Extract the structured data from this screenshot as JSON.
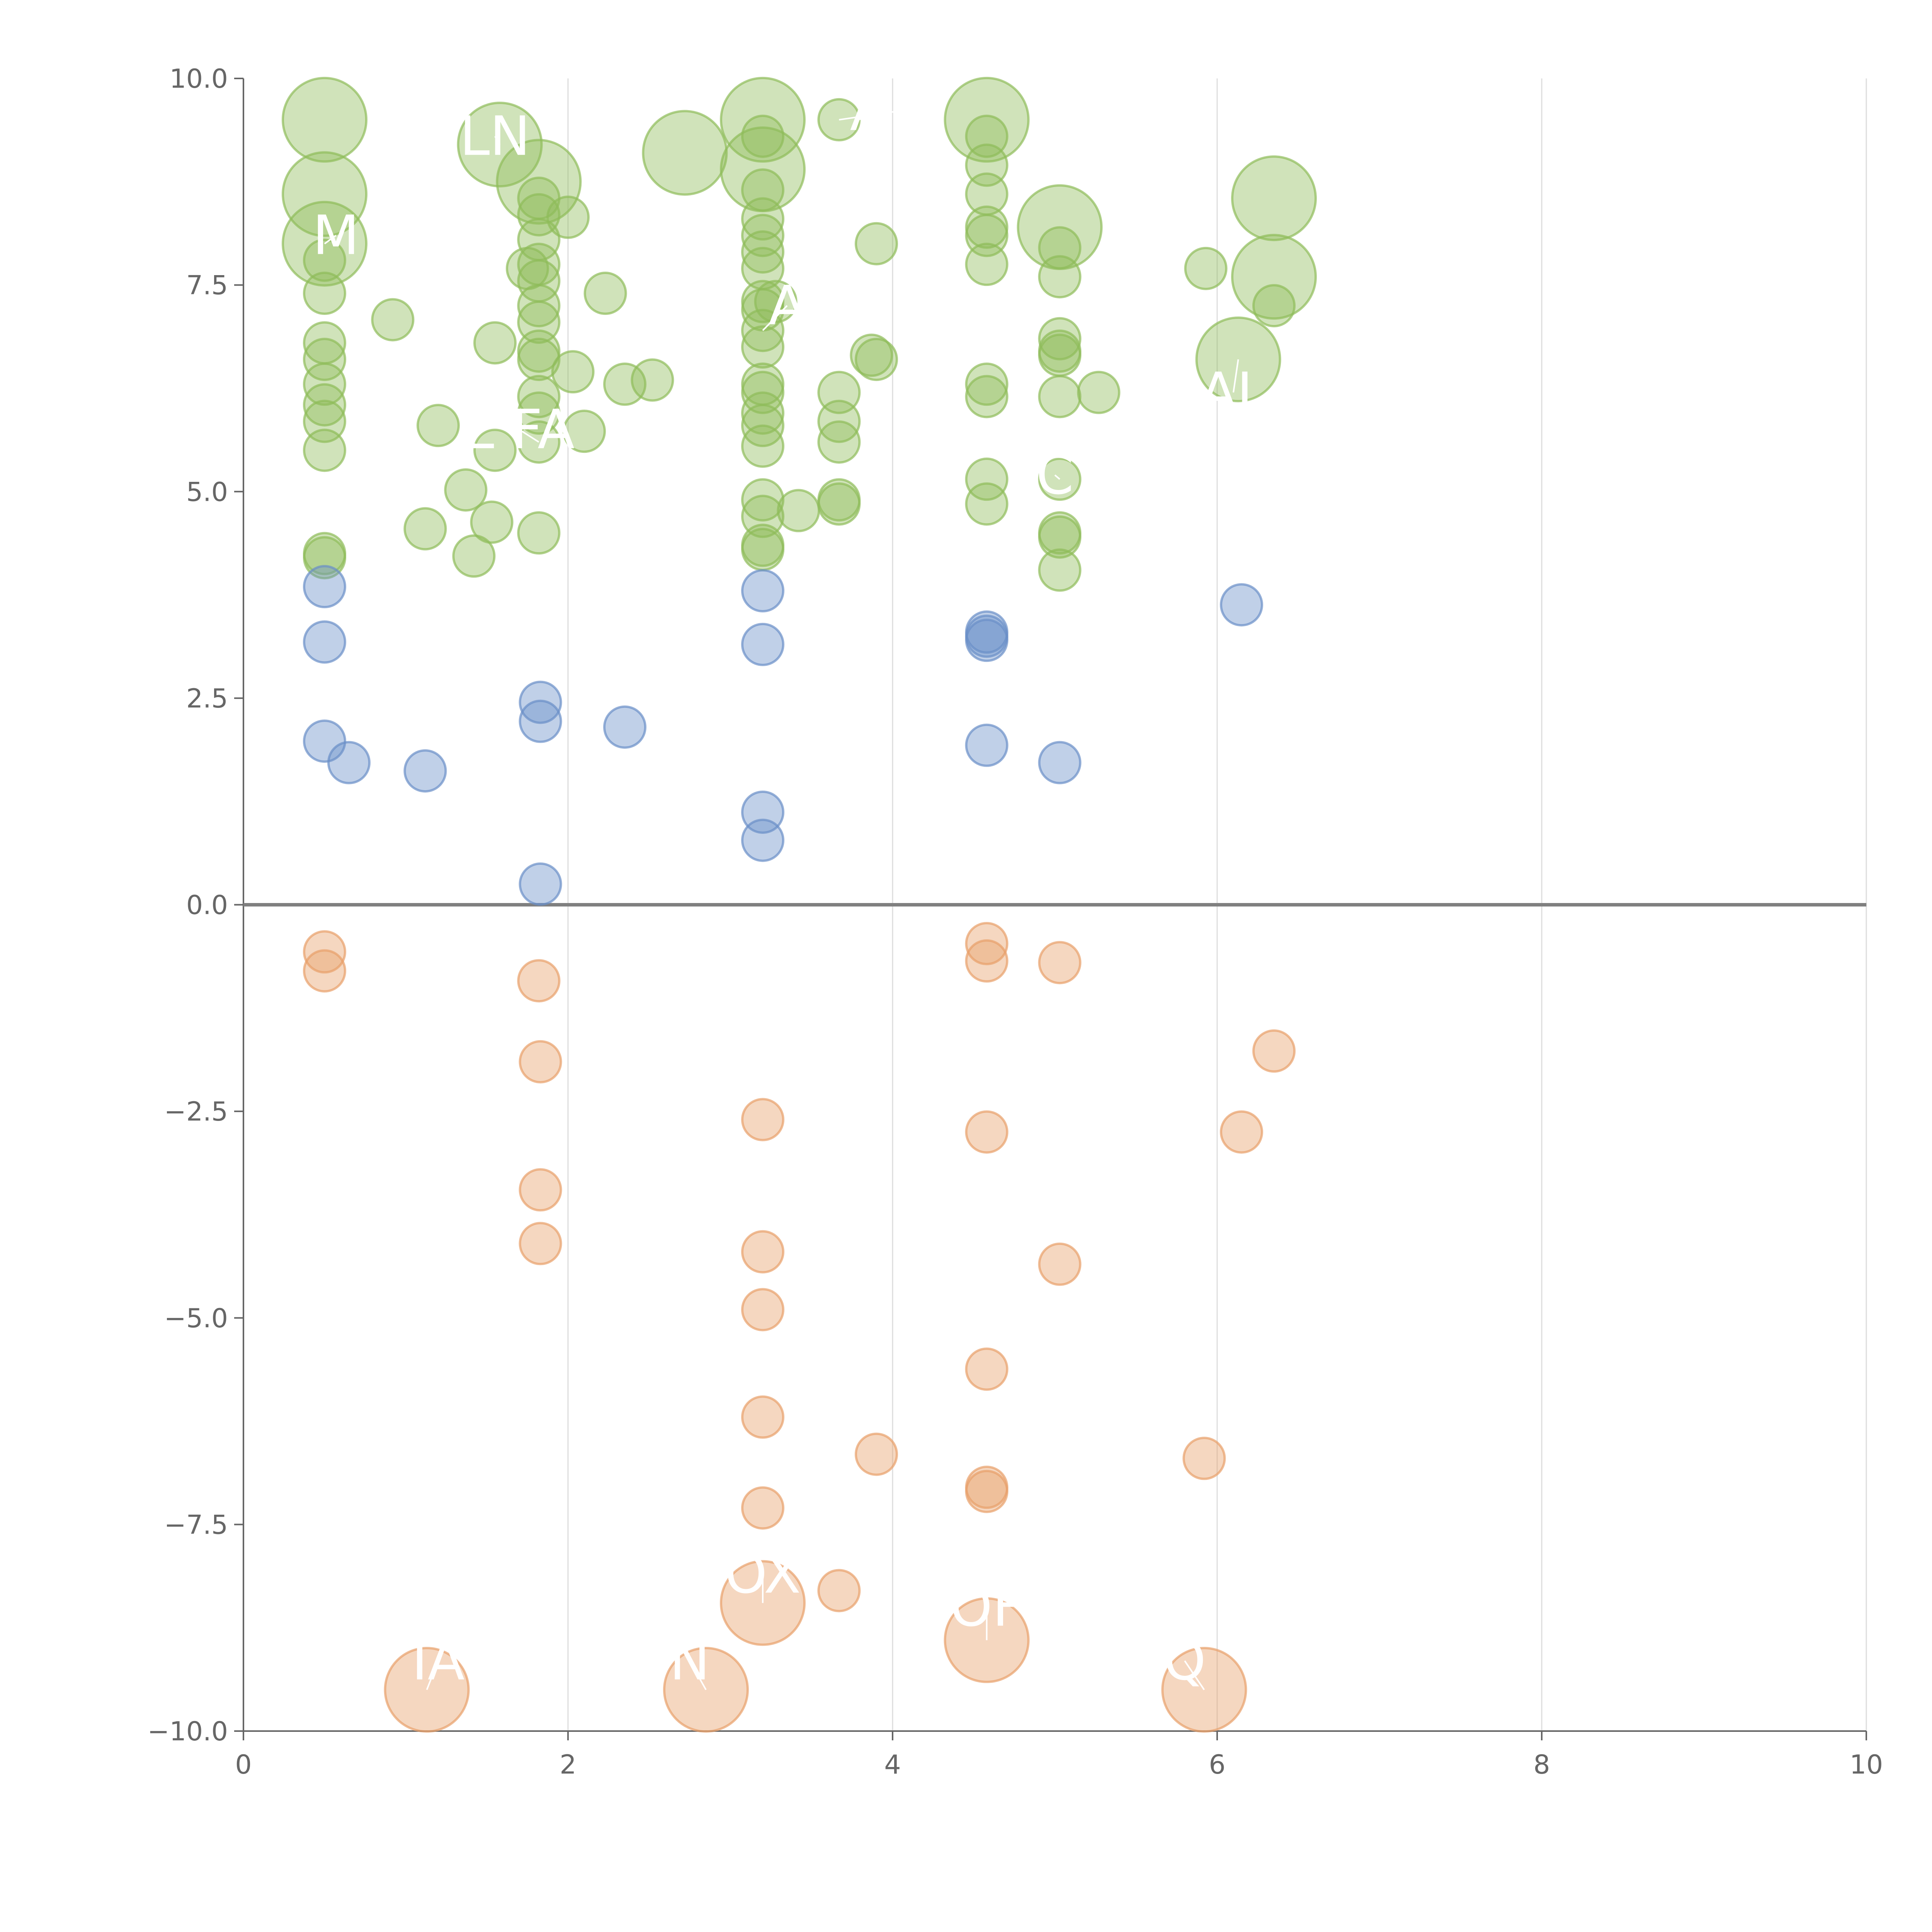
{
  "chart_data": {
    "type": "scatter",
    "title": "",
    "xlabel": "",
    "ylabel": "",
    "xlim": [
      0,
      10
    ],
    "ylim": [
      -10,
      10
    ],
    "xticks": [
      0,
      2,
      4,
      6,
      8,
      10
    ],
    "xtick_labels": [
      "0",
      "2",
      "4",
      "6",
      "8",
      "10"
    ],
    "yticks": [
      10,
      7.5,
      5,
      2.5,
      0,
      -2.5,
      -5,
      -7.5,
      -10
    ],
    "ytick_labels": [
      "10.0",
      "7.5",
      "5.0",
      "2.5",
      "0.0",
      "−2.5",
      "−5.0",
      "−7.5",
      "−10.0"
    ],
    "grid": "vertical",
    "zero_line": true,
    "colors": {
      "green": "#8fbc5a",
      "blue": "#6a8fc8",
      "orange": "#e8a06a",
      "axis": "#666666",
      "grid": "#dddddd",
      "zero": "#808080"
    },
    "series": [
      {
        "color": "green",
        "points": [
          {
            "x": 0.5,
            "y": 9.5,
            "s": 3
          },
          {
            "x": 0.5,
            "y": 8.6,
            "s": 3
          },
          {
            "x": 0.5,
            "y": 8.0,
            "s": 3
          },
          {
            "x": 0.5,
            "y": 7.8
          },
          {
            "x": 0.5,
            "y": 7.4
          },
          {
            "x": 0.5,
            "y": 6.8
          },
          {
            "x": 0.5,
            "y": 6.6
          },
          {
            "x": 0.5,
            "y": 6.3
          },
          {
            "x": 0.5,
            "y": 6.05
          },
          {
            "x": 0.5,
            "y": 5.85
          },
          {
            "x": 0.5,
            "y": 5.5
          },
          {
            "x": 0.5,
            "y": 4.25
          },
          {
            "x": 0.5,
            "y": 4.2
          },
          {
            "x": 0.92,
            "y": 7.08
          },
          {
            "x": 1.12,
            "y": 4.55
          },
          {
            "x": 1.2,
            "y": 5.8
          },
          {
            "x": 1.37,
            "y": 5.02
          },
          {
            "x": 1.42,
            "y": 4.22
          },
          {
            "x": 1.55,
            "y": 5.5
          },
          {
            "x": 1.55,
            "y": 6.8
          },
          {
            "x": 1.53,
            "y": 4.63
          },
          {
            "x": 1.58,
            "y": 9.2,
            "s": 3
          },
          {
            "x": 1.82,
            "y": 8.75,
            "s": 3
          },
          {
            "x": 1.82,
            "y": 8.55
          },
          {
            "x": 1.82,
            "y": 8.35
          },
          {
            "x": 1.82,
            "y": 8.05
          },
          {
            "x": 1.82,
            "y": 7.75
          },
          {
            "x": 1.82,
            "y": 7.55
          },
          {
            "x": 1.82,
            "y": 7.25
          },
          {
            "x": 1.82,
            "y": 7.05
          },
          {
            "x": 1.82,
            "y": 6.7
          },
          {
            "x": 1.82,
            "y": 6.6
          },
          {
            "x": 1.82,
            "y": 6.15
          },
          {
            "x": 1.82,
            "y": 5.95
          },
          {
            "x": 1.82,
            "y": 5.6
          },
          {
            "x": 1.82,
            "y": 4.5
          },
          {
            "x": 1.75,
            "y": 7.7
          },
          {
            "x": 2.0,
            "y": 8.32
          },
          {
            "x": 2.03,
            "y": 6.45
          },
          {
            "x": 2.1,
            "y": 5.73
          },
          {
            "x": 2.35,
            "y": 6.3
          },
          {
            "x": 2.23,
            "y": 7.4
          },
          {
            "x": 2.52,
            "y": 6.35
          },
          {
            "x": 2.72,
            "y": 9.1,
            "s": 3
          },
          {
            "x": 3.2,
            "y": 9.5,
            "s": 3
          },
          {
            "x": 3.2,
            "y": 9.3
          },
          {
            "x": 3.2,
            "y": 8.9,
            "s": 3
          },
          {
            "x": 3.2,
            "y": 8.65
          },
          {
            "x": 3.2,
            "y": 8.3
          },
          {
            "x": 3.2,
            "y": 8.1
          },
          {
            "x": 3.2,
            "y": 7.9
          },
          {
            "x": 3.2,
            "y": 7.7
          },
          {
            "x": 3.2,
            "y": 7.3
          },
          {
            "x": 3.2,
            "y": 7.2
          },
          {
            "x": 3.2,
            "y": 6.95
          },
          {
            "x": 3.2,
            "y": 6.75
          },
          {
            "x": 3.2,
            "y": 6.3
          },
          {
            "x": 3.2,
            "y": 6.2
          },
          {
            "x": 3.2,
            "y": 5.95
          },
          {
            "x": 3.2,
            "y": 5.8
          },
          {
            "x": 3.2,
            "y": 5.55
          },
          {
            "x": 3.2,
            "y": 4.9
          },
          {
            "x": 3.2,
            "y": 4.7
          },
          {
            "x": 3.2,
            "y": 4.35
          },
          {
            "x": 3.2,
            "y": 4.3
          },
          {
            "x": 3.28,
            "y": 7.3
          },
          {
            "x": 3.42,
            "y": 4.77
          },
          {
            "x": 3.67,
            "y": 9.5
          },
          {
            "x": 3.67,
            "y": 6.2
          },
          {
            "x": 3.67,
            "y": 5.85
          },
          {
            "x": 3.67,
            "y": 5.6
          },
          {
            "x": 3.67,
            "y": 4.9
          },
          {
            "x": 3.67,
            "y": 4.85
          },
          {
            "x": 3.87,
            "y": 6.65
          },
          {
            "x": 3.9,
            "y": 6.6
          },
          {
            "x": 3.9,
            "y": 8.0
          },
          {
            "x": 4.58,
            "y": 9.5,
            "s": 3
          },
          {
            "x": 4.58,
            "y": 9.3
          },
          {
            "x": 4.58,
            "y": 8.95
          },
          {
            "x": 4.58,
            "y": 8.6
          },
          {
            "x": 4.58,
            "y": 8.2
          },
          {
            "x": 4.58,
            "y": 8.1
          },
          {
            "x": 4.58,
            "y": 7.75
          },
          {
            "x": 4.58,
            "y": 6.3
          },
          {
            "x": 4.58,
            "y": 6.15
          },
          {
            "x": 4.58,
            "y": 5.15
          },
          {
            "x": 4.58,
            "y": 4.85
          },
          {
            "x": 5.03,
            "y": 8.2,
            "s": 3
          },
          {
            "x": 5.03,
            "y": 7.95
          },
          {
            "x": 5.03,
            "y": 7.6
          },
          {
            "x": 5.03,
            "y": 6.85
          },
          {
            "x": 5.03,
            "y": 6.7
          },
          {
            "x": 5.03,
            "y": 6.65
          },
          {
            "x": 5.03,
            "y": 6.15
          },
          {
            "x": 5.03,
            "y": 5.15
          },
          {
            "x": 5.03,
            "y": 4.5
          },
          {
            "x": 5.03,
            "y": 4.45
          },
          {
            "x": 5.03,
            "y": 4.05
          },
          {
            "x": 5.27,
            "y": 6.2
          },
          {
            "x": 5.93,
            "y": 7.7
          },
          {
            "x": 6.13,
            "y": 6.6,
            "s": 3
          },
          {
            "x": 6.35,
            "y": 8.55,
            "s": 3
          },
          {
            "x": 6.35,
            "y": 7.6,
            "s": 3
          },
          {
            "x": 6.35,
            "y": 7.25
          }
        ]
      },
      {
        "color": "blue",
        "points": [
          {
            "x": 0.5,
            "y": 3.85
          },
          {
            "x": 0.5,
            "y": 3.18
          },
          {
            "x": 0.5,
            "y": 1.98
          },
          {
            "x": 0.65,
            "y": 1.72
          },
          {
            "x": 1.12,
            "y": 1.62
          },
          {
            "x": 1.83,
            "y": 2.45
          },
          {
            "x": 1.83,
            "y": 2.22
          },
          {
            "x": 1.83,
            "y": 0.25
          },
          {
            "x": 2.35,
            "y": 2.15
          },
          {
            "x": 3.2,
            "y": 3.8
          },
          {
            "x": 3.2,
            "y": 3.15
          },
          {
            "x": 3.2,
            "y": 1.12
          },
          {
            "x": 3.2,
            "y": 0.78
          },
          {
            "x": 4.58,
            "y": 3.3
          },
          {
            "x": 4.58,
            "y": 3.25
          },
          {
            "x": 4.58,
            "y": 3.2
          },
          {
            "x": 4.58,
            "y": 1.93
          },
          {
            "x": 5.03,
            "y": 1.72
          },
          {
            "x": 6.15,
            "y": 3.63
          }
        ]
      },
      {
        "color": "orange",
        "points": [
          {
            "x": 0.5,
            "y": -0.57
          },
          {
            "x": 0.5,
            "y": -0.8
          },
          {
            "x": 1.82,
            "y": -0.92
          },
          {
            "x": 1.83,
            "y": -1.9
          },
          {
            "x": 1.83,
            "y": -3.45
          },
          {
            "x": 1.83,
            "y": -4.1
          },
          {
            "x": 3.2,
            "y": -2.6
          },
          {
            "x": 3.2,
            "y": -4.2
          },
          {
            "x": 3.2,
            "y": -4.9
          },
          {
            "x": 3.2,
            "y": -6.2
          },
          {
            "x": 3.2,
            "y": -7.3
          },
          {
            "x": 3.2,
            "y": -8.45,
            "s": 3
          },
          {
            "x": 3.67,
            "y": -8.3
          },
          {
            "x": 3.9,
            "y": -6.65
          },
          {
            "x": 4.58,
            "y": -0.47
          },
          {
            "x": 4.58,
            "y": -0.68
          },
          {
            "x": 4.58,
            "y": -2.75
          },
          {
            "x": 4.58,
            "y": -5.62
          },
          {
            "x": 4.58,
            "y": -7.05
          },
          {
            "x": 4.58,
            "y": -7.1
          },
          {
            "x": 4.58,
            "y": -8.9,
            "s": 3
          },
          {
            "x": 5.03,
            "y": -0.7
          },
          {
            "x": 5.03,
            "y": -4.35
          },
          {
            "x": 5.92,
            "y": -6.7
          },
          {
            "x": 6.15,
            "y": -2.75
          },
          {
            "x": 6.35,
            "y": -1.77
          },
          {
            "x": 1.13,
            "y": -9.5,
            "s": 3
          },
          {
            "x": 2.85,
            "y": -9.5,
            "s": 3
          },
          {
            "x": 5.92,
            "y": -9.5,
            "s": 3
          }
        ]
      }
    ],
    "labels": [
      {
        "text": "LN",
        "x": 1.55,
        "y": 9.3,
        "px": 1.58,
        "py": 9.2
      },
      {
        "text": "M",
        "x": 0.57,
        "y": 8.1,
        "px": 0.5,
        "py": 8.0
      },
      {
        "text": "L FA",
        "x": 1.7,
        "y": 5.75,
        "px": 1.82,
        "py": 5.6
      },
      {
        "text": "A",
        "x": 3.35,
        "y": 7.25,
        "px": 3.2,
        "py": 6.95
      },
      {
        "text": "A R",
        "x": 4.02,
        "y": 9.6,
        "px": 3.67,
        "py": 9.5
      },
      {
        "text": "C",
        "x": 5.0,
        "y": 5.2,
        "px": 5.03,
        "py": 5.15
      },
      {
        "text": "AL",
        "x": 6.1,
        "y": 6.2,
        "px": 6.13,
        "py": 6.6
      },
      {
        "text": "OX",
        "x": 3.2,
        "y": -8.1,
        "px": 3.2,
        "py": -8.45
      },
      {
        "text": "OF",
        "x": 4.58,
        "y": -8.5,
        "px": 4.58,
        "py": -8.9
      },
      {
        "text": "IA",
        "x": 1.2,
        "y": -9.15,
        "px": 1.13,
        "py": -9.5
      },
      {
        "text": "N",
        "x": 2.75,
        "y": -9.15,
        "px": 2.85,
        "py": -9.5
      },
      {
        "text": "Q",
        "x": 5.8,
        "y": -9.15,
        "px": 5.92,
        "py": -9.5
      }
    ]
  }
}
